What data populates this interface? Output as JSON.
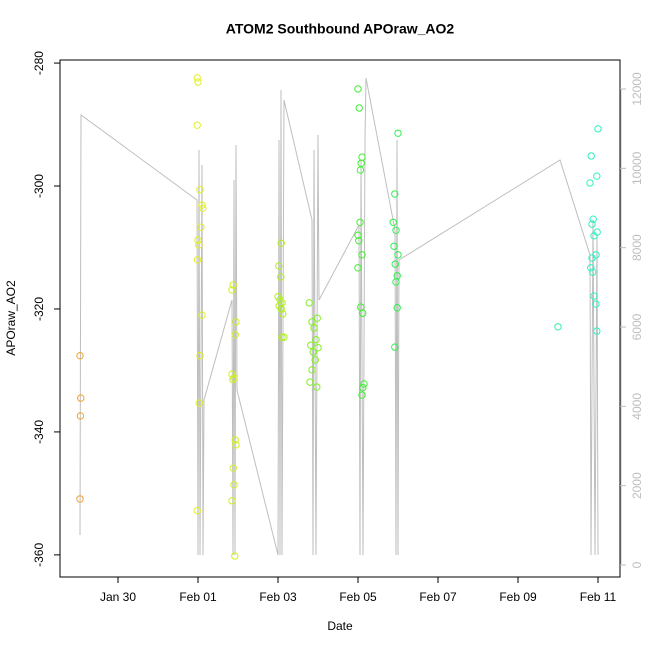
{
  "chart_data": {
    "type": "scatter",
    "title": "ATOM2 Southbound APOraw_AO2",
    "x_label": "Date",
    "y_label": "APOraw_AO2",
    "xlim": [
      28.55,
      42.55
    ],
    "xticks": [
      {
        "value": 30,
        "label": "Jan 30"
      },
      {
        "value": 32,
        "label": "Feb 01"
      },
      {
        "value": 34,
        "label": "Feb 03"
      },
      {
        "value": 36,
        "label": "Feb 05"
      },
      {
        "value": 38,
        "label": "Feb 07"
      },
      {
        "value": 40,
        "label": "Feb 09"
      },
      {
        "value": 42,
        "label": "Feb 11"
      }
    ],
    "ylim": [
      -363.6,
      -279.5
    ],
    "yticks": [
      -360,
      -340,
      -320,
      -300,
      -280
    ],
    "y2lim": [
      -302,
      12731
    ],
    "y2ticks": [
      0,
      2000,
      4000,
      6000,
      8000,
      10000,
      12000
    ],
    "y2_color": "#bebebe",
    "series": [
      {
        "color": "#f0a030",
        "x": [
          29.05,
          29.07,
          29.06,
          29.05
        ],
        "values": [
          -327.6,
          -334.5,
          -337.4,
          -350.9
        ]
      },
      {
        "color": "#e0f020",
        "x": [
          31.98,
          32.0,
          31.98,
          32.05,
          32.1,
          32.12,
          32.0,
          32.02,
          31.99,
          32.1,
          32.05,
          32.03,
          31.98,
          32.07
        ],
        "values": [
          -282.4,
          -283.1,
          -290.1,
          -300.6,
          -303.1,
          -303.6,
          -308.8,
          -309.6,
          -312.0,
          -321.0,
          -327.6,
          -335.3,
          -352.8,
          -306.7
        ]
      },
      {
        "color": "#d0f020",
        "x": [
          32.88,
          32.85,
          32.95,
          32.93,
          32.85,
          32.9,
          32.87,
          32.93,
          32.95,
          32.88,
          32.9,
          32.85,
          32.92
        ],
        "values": [
          -316.1,
          -316.9,
          -322.1,
          -324.2,
          -330.6,
          -331.2,
          -331.5,
          -341.3,
          -342.1,
          -345.9,
          -348.6,
          -351.2,
          -360.2
        ]
      },
      {
        "color": "#b0f020",
        "x": [
          34.08,
          34.02,
          34.07,
          34.0,
          34.05,
          34.1,
          34.03,
          34.08,
          34.12,
          34.1,
          34.15
        ],
        "values": [
          -309.3,
          -313.0,
          -314.8,
          -318.0,
          -318.5,
          -319.0,
          -319.5,
          -320.0,
          -320.8,
          -324.6,
          -324.6
        ]
      },
      {
        "color": "#80f020",
        "x": [
          34.78,
          34.98,
          34.85,
          34.9,
          34.95,
          34.82,
          35.0,
          34.88,
          34.93,
          34.85,
          34.8,
          34.97
        ],
        "values": [
          -319.0,
          -321.5,
          -322.1,
          -323.1,
          -325.0,
          -325.9,
          -326.3,
          -327.0,
          -328.3,
          -329.9,
          -331.9,
          -332.7
        ]
      },
      {
        "color": "#40f030",
        "x": [
          36.0,
          36.03,
          36.1,
          36.08,
          36.06,
          36.05,
          36.0,
          36.02,
          36.1,
          36.0,
          36.07,
          36.12,
          36.15,
          36.12,
          36.1
        ],
        "values": [
          -284.2,
          -287.3,
          -295.3,
          -296.3,
          -297.4,
          -305.9,
          -308.0,
          -308.9,
          -311.2,
          -313.3,
          -319.7,
          -320.7,
          -332.2,
          -332.8,
          -334.0
        ]
      },
      {
        "color": "#30f050",
        "x": [
          37.0,
          36.92,
          36.88,
          36.95,
          36.9,
          37.0,
          36.93,
          36.98,
          36.95,
          36.98,
          36.92
        ],
        "values": [
          -291.4,
          -301.3,
          -305.9,
          -307.2,
          -309.8,
          -311.2,
          -312.7,
          -314.6,
          -315.6,
          -319.8,
          -326.2
        ]
      },
      {
        "color": "#30f0a0",
        "x": [
          41.0
        ],
        "values": [
          -322.9
        ]
      },
      {
        "color": "#30f0c0",
        "x": [
          42.0,
          41.83,
          41.97,
          41.8,
          41.88,
          41.85,
          41.98,
          41.9,
          41.95,
          41.85,
          41.82,
          41.87,
          41.9,
          41.95,
          41.97
        ],
        "values": [
          -290.7,
          -295.1,
          -298.4,
          -299.5,
          -305.4,
          -306.2,
          -307.5,
          -308.1,
          -311.2,
          -311.7,
          -313.3,
          -314.0,
          -317.9,
          -319.2,
          -323.6
        ]
      }
    ],
    "line": {
      "color": "#bebebe",
      "axis": "y2",
      "x": [
        29.05,
        29.075,
        31.975,
        32.0,
        32.025,
        32.05,
        32.1,
        32.125,
        32.15,
        32.85,
        32.875,
        32.9,
        32.925,
        32.95,
        32.975,
        34.0,
        34.025,
        34.05,
        34.075,
        34.1,
        34.15,
        34.85,
        34.875,
        34.9,
        34.95,
        35.0,
        35.025,
        36.025,
        36.05,
        36.075,
        36.125,
        36.175,
        36.2,
        36.925,
        36.95,
        36.975,
        37.0,
        37.025,
        41.05,
        41.8,
        41.825,
        41.875,
        41.925,
        41.975,
        42.0
      ],
      "values": [
        756,
        11345,
        9202,
        252,
        10462,
        252,
        10084,
        252,
        4160,
        6681,
        252,
        9706,
        252,
        10588,
        4412,
        252,
        10714,
        252,
        11975,
        252,
        11723,
        8697,
        252,
        10462,
        252,
        10840,
        6681,
        8571,
        252,
        10210,
        252,
        10714,
        12277,
        8445,
        252,
        10714,
        252,
        7689,
        10210,
        7815,
        252,
        8697,
        252,
        8319,
        252
      ]
    }
  }
}
